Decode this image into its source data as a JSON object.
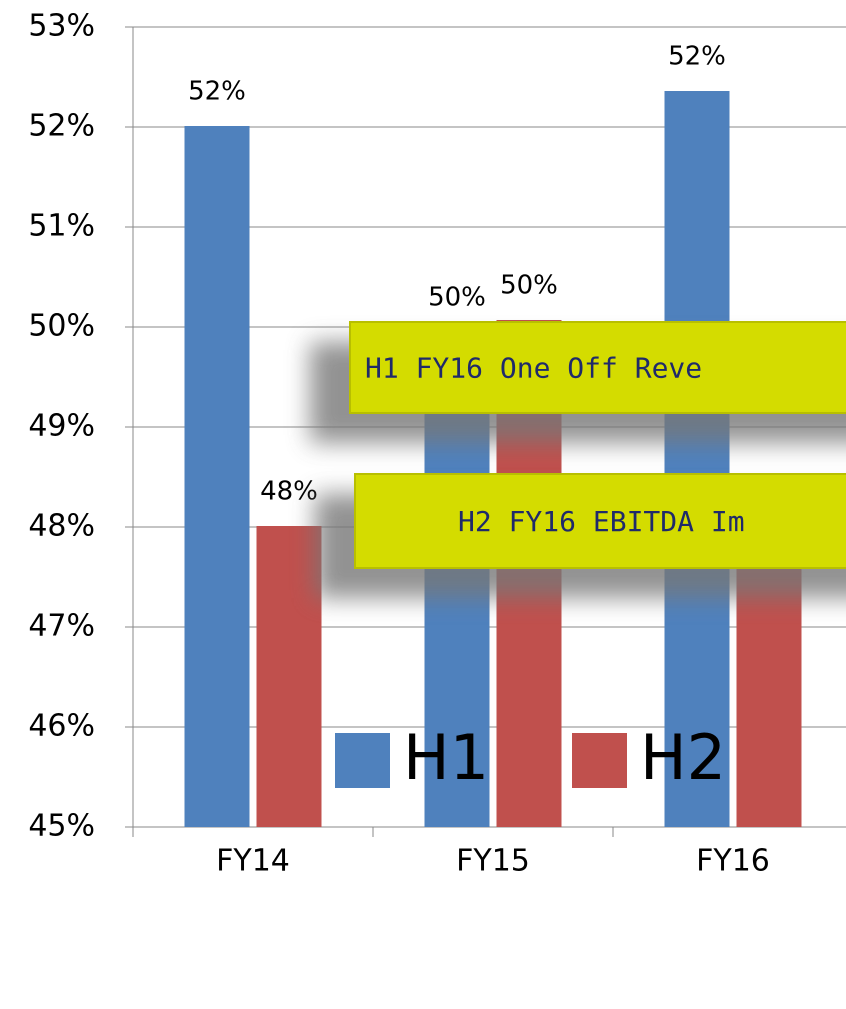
{
  "chart_data": {
    "type": "bar",
    "categories": [
      "FY14",
      "FY15",
      "FY16"
    ],
    "series": [
      {
        "name": "H1",
        "color": "#4f81bd",
        "values": [
          52.01,
          49.95,
          52.36
        ],
        "value_labels": [
          "52%",
          "50%",
          "52%"
        ]
      },
      {
        "name": "H2",
        "color": "#c0504d",
        "values": [
          48.01,
          50.07,
          47.7
        ],
        "value_labels": [
          "48%",
          "50%",
          null
        ]
      }
    ],
    "ylim": [
      45,
      53
    ],
    "yticks": [
      {
        "value": 45,
        "label": "45%"
      },
      {
        "value": 46,
        "label": "46%"
      },
      {
        "value": 47,
        "label": "47%"
      },
      {
        "value": 48,
        "label": "48%"
      },
      {
        "value": 49,
        "label": "49%"
      },
      {
        "value": 50,
        "label": "50%"
      },
      {
        "value": 51,
        "label": "51%"
      },
      {
        "value": 52,
        "label": "52%"
      },
      {
        "value": 53,
        "label": "53%"
      }
    ],
    "grid": true,
    "legend": "bottom",
    "annotations": [
      "H1 FY16 One Off Reve",
      "H2 FY16 EBITDA Im"
    ]
  }
}
